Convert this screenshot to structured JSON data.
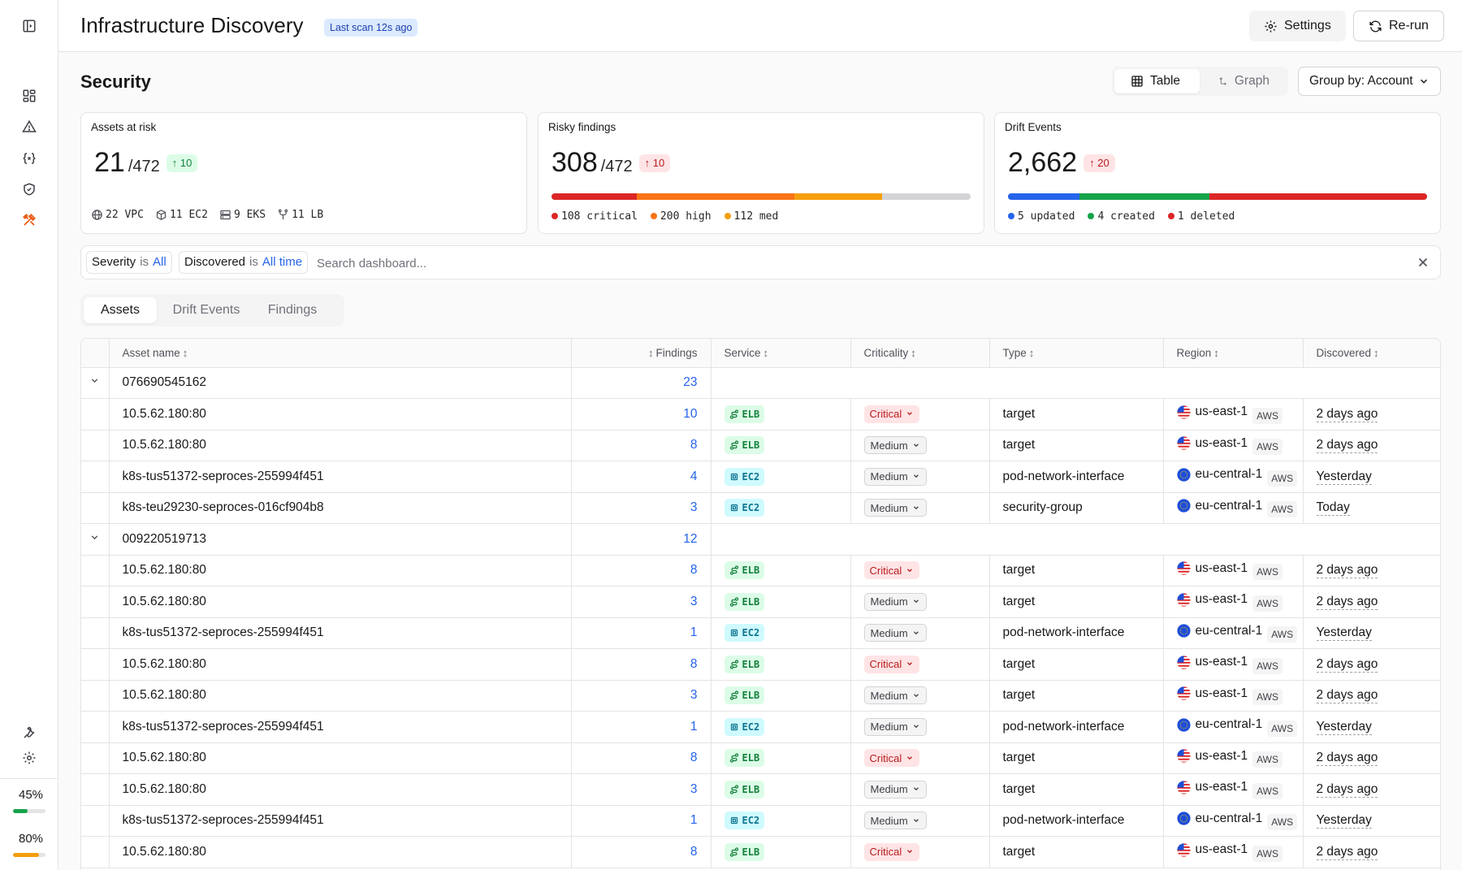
{
  "header": {
    "title": "Infrastructure Discovery",
    "scan_badge": "Last scan 12s ago",
    "settings_label": "Settings",
    "rerun_label": "Re-run"
  },
  "sidebar": {
    "nav_icons": [
      "layout-dashboard-icon",
      "alert-triangle-icon",
      "code-variable-icon",
      "shield-check-icon",
      "tools-icon"
    ],
    "bottom_icons": [
      "wrench-icon",
      "gear-icon"
    ],
    "meters": [
      {
        "label": "45%",
        "value": 0.45,
        "color": "#16a34a"
      },
      {
        "label": "80%",
        "value": 0.8,
        "color": "#f59e0b"
      }
    ]
  },
  "section": {
    "title": "Security",
    "view_table": "Table",
    "view_graph": "Graph",
    "group_by": "Group by: Account"
  },
  "cards": {
    "assets": {
      "label": "Assets at risk",
      "value": "21",
      "denom": "/472",
      "delta": "10",
      "stats": [
        {
          "icon": "globe-icon",
          "text": "22 VPC"
        },
        {
          "icon": "cube-icon",
          "text": "11 EC2"
        },
        {
          "icon": "server-icon",
          "text": "9 EKS"
        },
        {
          "icon": "fork-icon",
          "text": "11 LB"
        }
      ]
    },
    "findings": {
      "label": "Risky findings",
      "value": "308",
      "denom": "/472",
      "delta": "10",
      "segments": [
        {
          "value": 108,
          "color": "#dc2626"
        },
        {
          "value": 200,
          "color": "#f97316"
        },
        {
          "value": 112,
          "color": "#f59e0b"
        },
        {
          "value": 112,
          "color": "#d4d4d8"
        }
      ],
      "legend": [
        {
          "text": "108 critical",
          "color": "#dc2626"
        },
        {
          "text": "200 high",
          "color": "#f97316"
        },
        {
          "text": "112 med",
          "color": "#f59e0b"
        }
      ]
    },
    "drift": {
      "label": "Drift Events",
      "value": "2,662",
      "delta": "20",
      "segments": [
        {
          "value": 17,
          "color": "#2563eb"
        },
        {
          "value": 31,
          "color": "#16a34a"
        },
        {
          "value": 52,
          "color": "#dc2626"
        }
      ],
      "legend": [
        {
          "text": "5 updated",
          "color": "#2563eb"
        },
        {
          "text": "4 created",
          "color": "#16a34a"
        },
        {
          "text": "1 deleted",
          "color": "#dc2626"
        }
      ]
    }
  },
  "filters": {
    "severity_key": "Severity",
    "severity_op": "is",
    "severity_val": "All",
    "discovered_key": "Discovered",
    "discovered_op": "is",
    "discovered_val": "All time",
    "search_placeholder": "Search dashboard..."
  },
  "tabs": [
    "Assets",
    "Drift Events",
    "Findings"
  ],
  "table": {
    "columns": [
      "Asset name",
      "Findings",
      "Service",
      "Criticality",
      "Type",
      "Region",
      "Discovered"
    ],
    "groups": [
      {
        "account": "076690545162",
        "findings": "23",
        "rows": [
          {
            "name": "10.5.62.180:80",
            "findings": "10",
            "service": "ELB",
            "criticality": "Critical",
            "type": "target",
            "region": "us-east-1",
            "flag": "us",
            "cloud": "AWS",
            "discovered": "2 days ago"
          },
          {
            "name": "10.5.62.180:80",
            "findings": "8",
            "service": "ELB",
            "criticality": "Medium",
            "type": "target",
            "region": "us-east-1",
            "flag": "us",
            "cloud": "AWS",
            "discovered": "2 days ago"
          },
          {
            "name": "k8s-tus51372-seproces-255994f451",
            "findings": "4",
            "service": "EC2",
            "criticality": "Medium",
            "type": "pod-network-interface",
            "region": "eu-central-1",
            "flag": "eu",
            "cloud": "AWS",
            "discovered": "Yesterday"
          },
          {
            "name": "k8s-teu29230-seproces-016cf904b8",
            "findings": "3",
            "service": "EC2",
            "criticality": "Medium",
            "type": "security-group",
            "region": "eu-central-1",
            "flag": "eu",
            "cloud": "AWS",
            "discovered": "Today"
          }
        ]
      },
      {
        "account": "009220519713",
        "findings": "12",
        "rows": [
          {
            "name": "10.5.62.180:80",
            "findings": "8",
            "service": "ELB",
            "criticality": "Critical",
            "type": "target",
            "region": "us-east-1",
            "flag": "us",
            "cloud": "AWS",
            "discovered": "2 days ago"
          },
          {
            "name": "10.5.62.180:80",
            "findings": "3",
            "service": "ELB",
            "criticality": "Medium",
            "type": "target",
            "region": "us-east-1",
            "flag": "us",
            "cloud": "AWS",
            "discovered": "2 days ago"
          },
          {
            "name": "k8s-tus51372-seproces-255994f451",
            "findings": "1",
            "service": "EC2",
            "criticality": "Medium",
            "type": "pod-network-interface",
            "region": "eu-central-1",
            "flag": "eu",
            "cloud": "AWS",
            "discovered": "Yesterday"
          },
          {
            "name": "10.5.62.180:80",
            "findings": "8",
            "service": "ELB",
            "criticality": "Critical",
            "type": "target",
            "region": "us-east-1",
            "flag": "us",
            "cloud": "AWS",
            "discovered": "2 days ago"
          },
          {
            "name": "10.5.62.180:80",
            "findings": "3",
            "service": "ELB",
            "criticality": "Medium",
            "type": "target",
            "region": "us-east-1",
            "flag": "us",
            "cloud": "AWS",
            "discovered": "2 days ago"
          },
          {
            "name": "k8s-tus51372-seproces-255994f451",
            "findings": "1",
            "service": "EC2",
            "criticality": "Medium",
            "type": "pod-network-interface",
            "region": "eu-central-1",
            "flag": "eu",
            "cloud": "AWS",
            "discovered": "Yesterday"
          },
          {
            "name": "10.5.62.180:80",
            "findings": "8",
            "service": "ELB",
            "criticality": "Critical",
            "type": "target",
            "region": "us-east-1",
            "flag": "us",
            "cloud": "AWS",
            "discovered": "2 days ago"
          },
          {
            "name": "10.5.62.180:80",
            "findings": "3",
            "service": "ELB",
            "criticality": "Medium",
            "type": "target",
            "region": "us-east-1",
            "flag": "us",
            "cloud": "AWS",
            "discovered": "2 days ago"
          },
          {
            "name": "k8s-tus51372-seproces-255994f451",
            "findings": "1",
            "service": "EC2",
            "criticality": "Medium",
            "type": "pod-network-interface",
            "region": "eu-central-1",
            "flag": "eu",
            "cloud": "AWS",
            "discovered": "Yesterday"
          },
          {
            "name": "10.5.62.180:80",
            "findings": "8",
            "service": "ELB",
            "criticality": "Critical",
            "type": "target",
            "region": "us-east-1",
            "flag": "us",
            "cloud": "AWS",
            "discovered": "2 days ago"
          }
        ]
      }
    ]
  }
}
